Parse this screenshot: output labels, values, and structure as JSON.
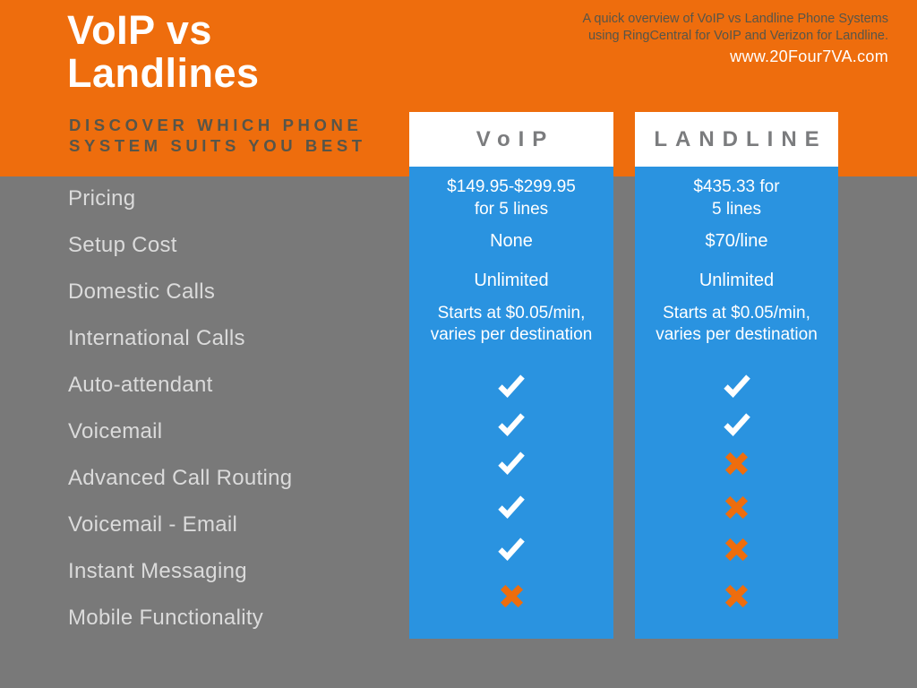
{
  "colors": {
    "orange": "#EE6D0D",
    "blue": "#2A93E0",
    "background": "#797979",
    "feature_label": "#DBDBDB",
    "dark_text": "#575549",
    "column_header_text": "#7B7C7E",
    "check": "#FFFFFF",
    "cross": "#EE6D0D"
  },
  "header": {
    "title_line1": "VoIP vs",
    "title_line2": "Landlines",
    "subtitle_line1": "DISCOVER WHICH PHONE",
    "subtitle_line2": "SYSTEM SUITS YOU BEST",
    "note_line1": "A quick overview of VoIP vs Landline Phone Systems",
    "note_line2": "using RingCentral for VoIP and Verizon for Landline.",
    "website": "www.20Four7VA.com"
  },
  "features": [
    "Pricing",
    "Setup Cost",
    "Domestic Calls",
    "International Calls",
    "Auto-attendant",
    "Voicemail",
    "Advanced Call Routing",
    "Voicemail - Email",
    "Instant Messaging",
    "Mobile Functionality"
  ],
  "columns": [
    {
      "label": "VoIP",
      "pricing_line1": "$149.95-$299.95",
      "pricing_line2": "for 5 lines",
      "setup_cost": "None",
      "domestic_calls": "Unlimited",
      "intl_line1": "Starts at $0.05/min,",
      "intl_line2": "varies per destination",
      "icons": [
        "check",
        "check",
        "check",
        "check",
        "check",
        "cross"
      ]
    },
    {
      "label": "LANDLINE",
      "pricing_line1": "$435.33 for",
      "pricing_line2": "5 lines",
      "setup_cost": "$70/line",
      "domestic_calls": "Unlimited",
      "intl_line1": "Starts at $0.05/min,",
      "intl_line2": "varies per destination",
      "icons": [
        "check",
        "check",
        "cross",
        "cross",
        "cross",
        "cross"
      ]
    }
  ]
}
